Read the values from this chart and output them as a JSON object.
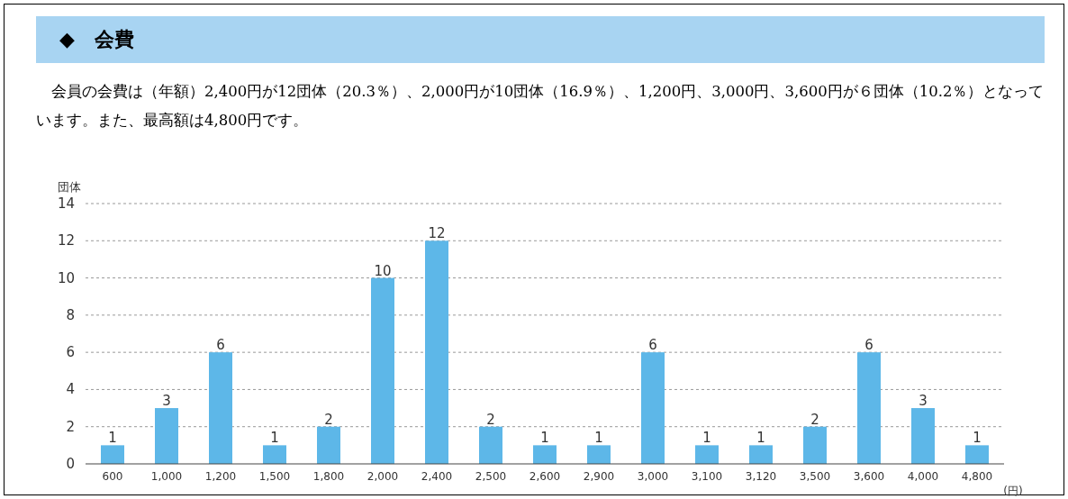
{
  "chart_data": {
    "type": "bar",
    "title": "◆　会費",
    "subtitle": "　会員の会費は（年額）2,400円が12団体（20.3％）、2,000円が10団体（16.9％）、1,200円、3,000円、3,600円が６団体（10.2％）となっています。また、最高額は4,800円です。",
    "ylabel": "団体",
    "xlabel": "(円)",
    "categories": [
      "600",
      "1,000",
      "1,200",
      "1,500",
      "1,800",
      "2,000",
      "2,400",
      "2,500",
      "2,600",
      "2,900",
      "3,000",
      "3,100",
      "3,120",
      "3,500",
      "3,600",
      "4,000",
      "4,800"
    ],
    "values": [
      1,
      3,
      6,
      1,
      2,
      10,
      12,
      2,
      1,
      1,
      6,
      1,
      1,
      2,
      6,
      3,
      1
    ],
    "color": "#5db7e8",
    "ylim": [
      0,
      14
    ],
    "yticks": [
      0,
      2,
      4,
      6,
      8,
      10,
      12,
      14
    ],
    "grid": "y",
    "data_labels": true
  }
}
